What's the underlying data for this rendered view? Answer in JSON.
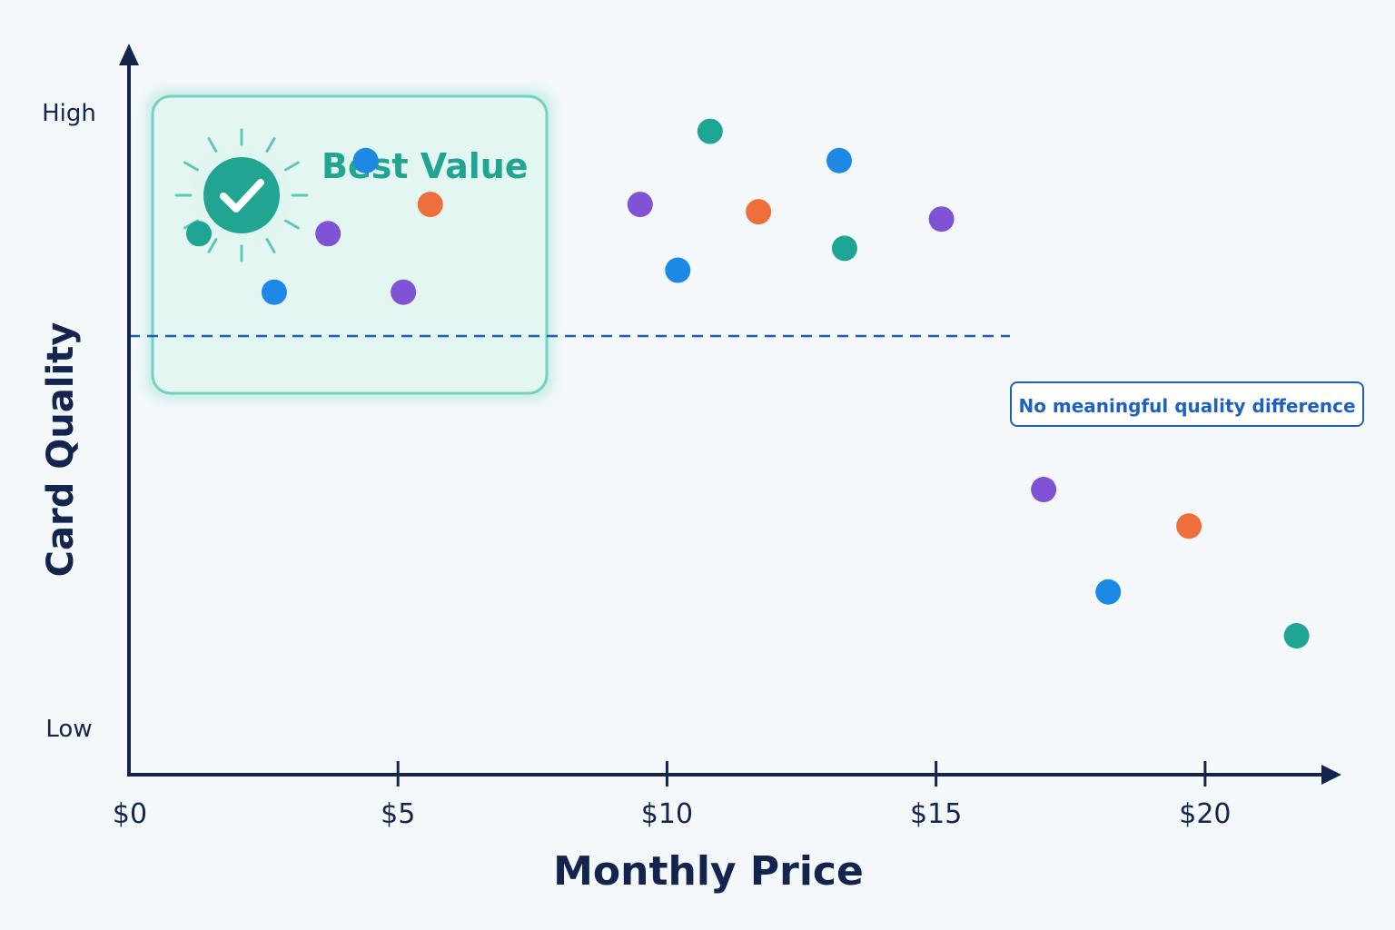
{
  "chart_data": {
    "type": "scatter",
    "xlabel": "Monthly Price",
    "ylabel": "Card Quality",
    "xlim": [
      0,
      22.5
    ],
    "ylim": [
      0,
      1
    ],
    "x_ticks": [
      {
        "value": 5,
        "label": "$5"
      },
      {
        "value": 10,
        "label": "$10"
      },
      {
        "value": 15,
        "label": "$15"
      },
      {
        "value": 20,
        "label": "$20"
      }
    ],
    "x_origin_label": "$0",
    "y_labels": {
      "high": "High",
      "low": "Low"
    },
    "grid": false,
    "colors": {
      "teal": "#1fa594",
      "blue": "#1e88e5",
      "purple": "#8052d6",
      "orange": "#ee6f3c",
      "axis": "#13254f",
      "threshold": "#1d5fb0"
    },
    "points": [
      {
        "x": 1.3,
        "y": 0.74,
        "color": "teal"
      },
      {
        "x": 2.7,
        "y": 0.66,
        "color": "blue"
      },
      {
        "x": 3.7,
        "y": 0.74,
        "color": "purple"
      },
      {
        "x": 4.4,
        "y": 0.84,
        "color": "blue"
      },
      {
        "x": 5.1,
        "y": 0.66,
        "color": "purple"
      },
      {
        "x": 5.6,
        "y": 0.78,
        "color": "orange"
      },
      {
        "x": 9.5,
        "y": 0.78,
        "color": "purple"
      },
      {
        "x": 10.2,
        "y": 0.69,
        "color": "blue"
      },
      {
        "x": 10.8,
        "y": 0.88,
        "color": "teal"
      },
      {
        "x": 11.7,
        "y": 0.77,
        "color": "orange"
      },
      {
        "x": 13.2,
        "y": 0.84,
        "color": "blue"
      },
      {
        "x": 13.3,
        "y": 0.72,
        "color": "teal"
      },
      {
        "x": 15.1,
        "y": 0.76,
        "color": "purple"
      },
      {
        "x": 17.0,
        "y": 0.39,
        "color": "purple"
      },
      {
        "x": 18.2,
        "y": 0.25,
        "color": "blue"
      },
      {
        "x": 19.7,
        "y": 0.34,
        "color": "orange"
      },
      {
        "x": 21.7,
        "y": 0.19,
        "color": "teal"
      }
    ],
    "threshold": {
      "y": 0.6,
      "label": "No meaningful quality difference"
    },
    "highlight": {
      "label": "Best Value",
      "x_range": [
        0,
        6.5
      ],
      "y_range": [
        0.6,
        1.0
      ]
    }
  }
}
